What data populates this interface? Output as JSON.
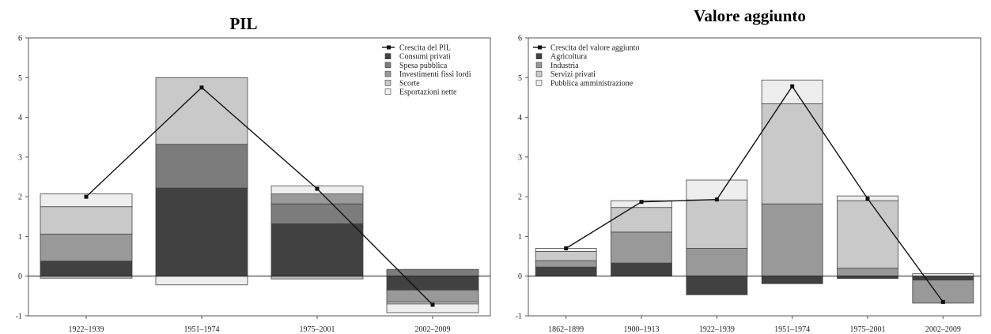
{
  "chart_data": [
    {
      "type": "bar",
      "stacked": true,
      "title": "PIL",
      "categories": [
        "1922–1939",
        "1951–1974",
        "1975–2001",
        "2002–2009"
      ],
      "ylim": [
        -1,
        6
      ],
      "yticks": [
        -1,
        0,
        1,
        2,
        3,
        4,
        5,
        6
      ],
      "legend_position": "top-right",
      "line": {
        "name": "Crescita del PIL",
        "values": [
          2.0,
          4.75,
          2.2,
          -0.72
        ]
      },
      "series": [
        {
          "name": "Consumi privati",
          "color": "#414141",
          "values": [
            0.38,
            2.22,
            1.32,
            -0.35
          ]
        },
        {
          "name": "Spesa pubblica",
          "color": "#7c7c7c",
          "values": [
            0.0,
            1.1,
            0.5,
            0.17
          ]
        },
        {
          "name": "Investimenti fissi lordi",
          "color": "#999999",
          "values": [
            0.68,
            0.0,
            0.25,
            -0.3
          ]
        },
        {
          "name": "Scorte",
          "color": "#c9c9c9",
          "values": [
            0.69,
            1.68,
            0.0,
            -0.05
          ]
        },
        {
          "name": "Esportazioni nette",
          "color": "#eeeeee",
          "values": [
            0.32,
            -0.22,
            0.2,
            -0.22
          ]
        }
      ],
      "extra_negative": [
        -0.05,
        0.0,
        -0.07,
        0.0
      ]
    },
    {
      "type": "bar",
      "stacked": true,
      "title": "Valore aggiunto",
      "categories": [
        "1862–1899",
        "1900–1913",
        "1922–1939",
        "1951–1974",
        "1975–2001",
        "2002–2009"
      ],
      "ylim": [
        -1,
        6
      ],
      "yticks": [
        -1,
        0,
        1,
        2,
        3,
        4,
        5,
        6
      ],
      "legend_position": "top-left",
      "line": {
        "name": "Crescita del valore aggiunto",
        "values": [
          0.7,
          1.87,
          1.93,
          4.78,
          1.95,
          -0.65
        ]
      },
      "series": [
        {
          "name": "Agricoltura",
          "color": "#414141",
          "values": [
            0.23,
            0.33,
            -0.47,
            -0.19,
            -0.06,
            -0.1
          ]
        },
        {
          "name": "Industria",
          "color": "#999999",
          "values": [
            0.16,
            0.78,
            0.7,
            1.82,
            0.2,
            -0.58
          ]
        },
        {
          "name": "Servizi privati",
          "color": "#c9c9c9",
          "values": [
            0.23,
            0.62,
            1.22,
            2.52,
            1.7,
            0.0
          ]
        },
        {
          "name": "Pubblica amministrazione",
          "color": "#eeeeee",
          "values": [
            0.08,
            0.17,
            0.5,
            0.6,
            0.12,
            0.06
          ]
        }
      ]
    }
  ]
}
